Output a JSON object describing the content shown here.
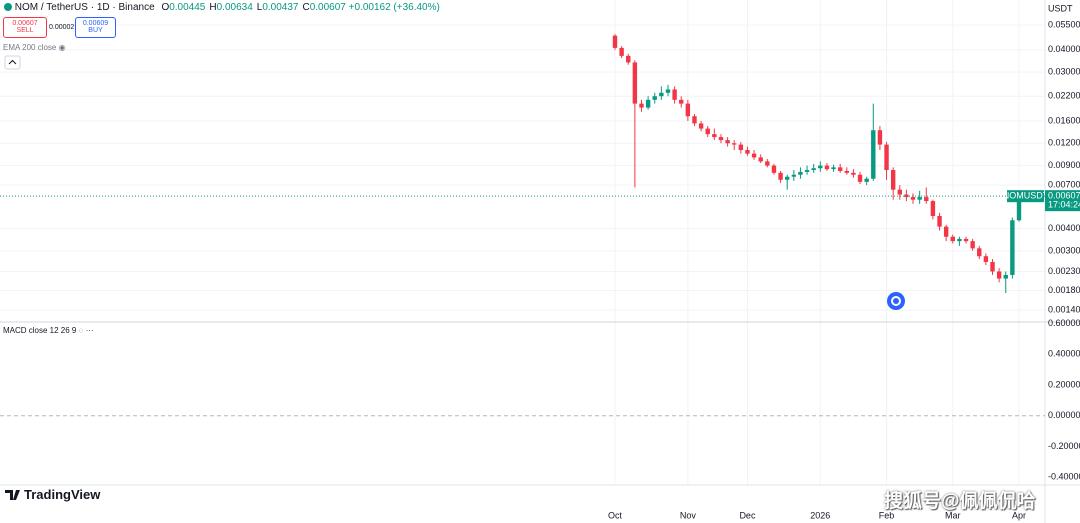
{
  "header": {
    "symbol": "NOM / TetherUS · 1D · Binance",
    "ohlc": [
      {
        "label": "O",
        "value": "0.00445"
      },
      {
        "label": "H",
        "value": "0.00634"
      },
      {
        "label": "L",
        "value": "0.00437"
      },
      {
        "label": "C",
        "value": "0.00607"
      }
    ],
    "change": "+0.00162 (+36.40%)",
    "sell_price": "0.00607",
    "sell_label": "SELL",
    "spread": "0.00002",
    "buy_price": "0.00609",
    "buy_label": "BUY",
    "indicator": "EMA 200 close"
  },
  "chart_data": [
    {
      "type": "candlestick",
      "currency": "USDT",
      "log_scale": true,
      "grid": true,
      "categories": [
        "Oct",
        null,
        null,
        null,
        null,
        null,
        null,
        null,
        null,
        null,
        null,
        "Nov",
        null,
        null,
        null,
        null,
        null,
        null,
        null,
        null,
        "Dec",
        null,
        null,
        null,
        null,
        null,
        null,
        null,
        null,
        null,
        null,
        "2026",
        null,
        null,
        null,
        null,
        null,
        null,
        null,
        null,
        null,
        "Feb",
        null,
        null,
        null,
        null,
        null,
        null,
        null,
        null,
        null,
        "Mar",
        null,
        null,
        null,
        null,
        null,
        null,
        null,
        null,
        null,
        "Apr"
      ],
      "series": [
        {
          "name": "NOMUSDT",
          "up_color": "#089981",
          "down_color": "#f23645",
          "open": [
            0.048,
            0.041,
            0.037,
            0.034,
            0.02,
            0.019,
            0.021,
            0.022,
            0.023,
            0.024,
            0.021,
            0.02,
            0.017,
            0.0155,
            0.0145,
            0.0135,
            0.013,
            0.0125,
            0.012,
            0.0118,
            0.011,
            0.0105,
            0.01,
            0.0095,
            0.009,
            0.0082,
            0.0075,
            0.0078,
            0.008,
            0.0083,
            0.0085,
            0.0087,
            0.009,
            0.0086,
            0.0088,
            0.0084,
            0.0082,
            0.008,
            0.0073,
            0.0076,
            0.0142,
            0.0118,
            0.0085,
            0.0066,
            0.0062,
            0.006,
            0.0058,
            0.006,
            0.0057,
            0.0047,
            0.0041,
            0.0036,
            0.0034,
            0.0035,
            0.0034,
            0.0031,
            0.0028,
            0.0026,
            0.0023,
            0.0021,
            0.0022,
            0.00445
          ],
          "high": [
            0.049,
            0.042,
            0.038,
            0.035,
            0.021,
            0.022,
            0.023,
            0.025,
            0.0255,
            0.025,
            0.022,
            0.021,
            0.0175,
            0.016,
            0.015,
            0.0145,
            0.0135,
            0.013,
            0.0125,
            0.0122,
            0.0115,
            0.011,
            0.0104,
            0.0098,
            0.0092,
            0.0084,
            0.008,
            0.0085,
            0.0088,
            0.009,
            0.0092,
            0.0095,
            0.0093,
            0.0091,
            0.0092,
            0.0088,
            0.0086,
            0.0083,
            0.0078,
            0.02,
            0.015,
            0.0122,
            0.0088,
            0.007,
            0.0066,
            0.0063,
            0.0065,
            0.0068,
            0.0058,
            0.0049,
            0.0042,
            0.0037,
            0.0036,
            0.0036,
            0.0035,
            0.0032,
            0.0029,
            0.0027,
            0.0024,
            0.0023,
            0.0046,
            0.00634
          ],
          "low": [
            0.04,
            0.036,
            0.033,
            0.0068,
            0.018,
            0.0185,
            0.02,
            0.021,
            0.022,
            0.02,
            0.019,
            0.016,
            0.015,
            0.014,
            0.013,
            0.0125,
            0.012,
            0.0115,
            0.011,
            0.0105,
            0.0102,
            0.0097,
            0.0093,
            0.0088,
            0.008,
            0.0072,
            0.0066,
            0.0074,
            0.0076,
            0.008,
            0.0082,
            0.0083,
            0.0084,
            0.0083,
            0.0082,
            0.008,
            0.0077,
            0.0071,
            0.007,
            0.0074,
            0.011,
            0.0075,
            0.0058,
            0.0058,
            0.0057,
            0.0055,
            0.0055,
            0.0055,
            0.0045,
            0.0039,
            0.0034,
            0.0033,
            0.0032,
            0.0033,
            0.003,
            0.0027,
            0.0025,
            0.0022,
            0.002,
            0.00174,
            0.0021,
            0.00437
          ],
          "close": [
            0.041,
            0.037,
            0.034,
            0.02,
            0.019,
            0.021,
            0.022,
            0.023,
            0.024,
            0.021,
            0.02,
            0.017,
            0.0155,
            0.0145,
            0.0135,
            0.013,
            0.0125,
            0.012,
            0.0118,
            0.011,
            0.0105,
            0.01,
            0.0095,
            0.009,
            0.0082,
            0.0075,
            0.0078,
            0.008,
            0.0083,
            0.0085,
            0.0087,
            0.009,
            0.0086,
            0.0088,
            0.0084,
            0.0082,
            0.008,
            0.0073,
            0.0076,
            0.0142,
            0.0118,
            0.0085,
            0.0066,
            0.0062,
            0.006,
            0.0058,
            0.006,
            0.0057,
            0.0047,
            0.0041,
            0.0036,
            0.0034,
            0.0035,
            0.0034,
            0.0031,
            0.0028,
            0.0026,
            0.0023,
            0.0021,
            0.0022,
            0.00445,
            0.00607
          ]
        }
      ],
      "ylim": [
        0.0012,
        0.076
      ],
      "yticks": [
        {
          "value": 0.055,
          "label": "0.05500"
        },
        {
          "value": 0.04,
          "label": "0.04000"
        },
        {
          "value": 0.03,
          "label": "0.03000"
        },
        {
          "value": 0.022,
          "label": "0.02200"
        },
        {
          "value": 0.016,
          "label": "0.01600"
        },
        {
          "value": 0.012,
          "label": "0.01200"
        },
        {
          "value": 0.009,
          "label": "0.00900"
        },
        {
          "value": 0.007,
          "label": "0.00700"
        },
        {
          "value": 0.004,
          "label": "0.00400"
        },
        {
          "value": 0.003,
          "label": "0.00300"
        },
        {
          "value": 0.0023,
          "label": "0.00230"
        },
        {
          "value": 0.0018,
          "label": "0.00180"
        },
        {
          "value": 0.0014,
          "label": "0.00140"
        }
      ],
      "last_price_label": "0.00607",
      "countdown": "17:04:24"
    },
    {
      "type": "macd",
      "title": "MACD close 12 26 9",
      "ylim": [
        -0.45,
        0.61
      ],
      "zero_line": true,
      "yticks": [
        {
          "value": 0.6,
          "label": "0.60000"
        },
        {
          "value": 0.4,
          "label": "0.40000"
        },
        {
          "value": 0.2,
          "label": "0.20000"
        },
        {
          "value": 0,
          "label": "0.00000"
        },
        {
          "value": -0.2,
          "label": "-0.20000"
        },
        {
          "value": -0.4,
          "label": "-0.40000"
        }
      ]
    }
  ],
  "logo": "TradingView",
  "watermark": "搜狐号@佩佩侃哈"
}
